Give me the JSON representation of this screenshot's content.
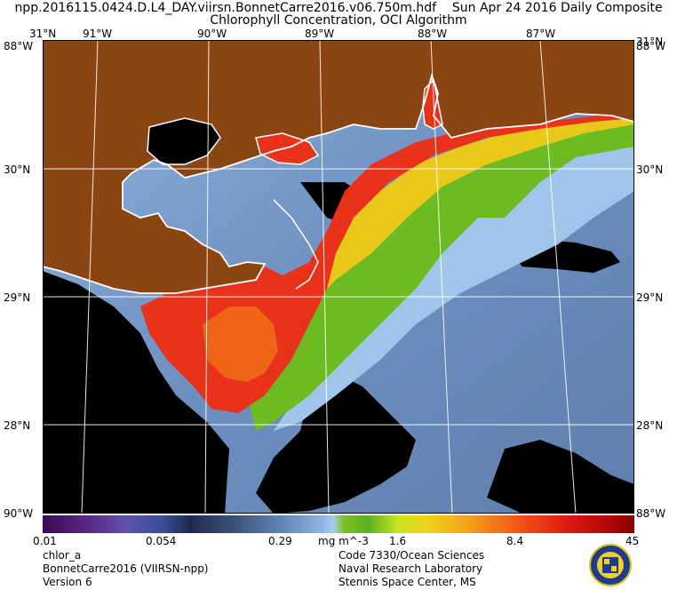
{
  "header": {
    "line1_left": "npp.2016115.0424.D.L4_DAY.viirsn.BonnetCarre2016.v06.750m.hdf",
    "line1_right": "Sun Apr 24 2016 Daily Composite",
    "line2": "Chlorophyll Concentration, OCI Algorithm"
  },
  "grid_labels": {
    "top_lon": [
      "91°W",
      "90°W",
      "89°W",
      "88°W",
      "87°W"
    ],
    "top_corner_left": "31°N",
    "top_corner_right": "31°N",
    "left_lat": [
      "88°W",
      "30°N",
      "29°N",
      "28°N",
      "88°W"
    ],
    "right_lat": [
      "88°W",
      "30°N",
      "29°N",
      "28°N",
      "88°W"
    ],
    "bottom_corner_left": "90°W",
    "bottom_corner_right": "88°W"
  },
  "colorbar": {
    "ticks": [
      "0.01",
      "0.054",
      "0.29",
      "1.6",
      "8.4",
      "45"
    ],
    "unit": "mg m^-3"
  },
  "footer": {
    "left": [
      "chlor_a",
      "BonnetCarre2016 (VIIRSN-npp)",
      "Version 6"
    ],
    "right": [
      "Code 7330/Ocean Sciences",
      "Naval Research Laboratory",
      "Stennis Space Center, MS"
    ]
  },
  "colors": {
    "land": "#8b4513",
    "no_data": "#000000",
    "offshore_low": "#6d8fbf",
    "shelf_mid": "#9fc6ea",
    "plume_high": "#e8321a",
    "grid": "#ffffff"
  }
}
